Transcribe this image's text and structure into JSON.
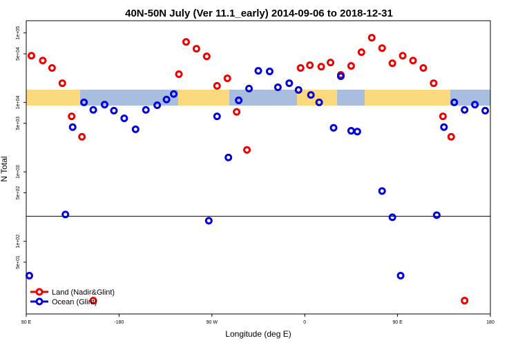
{
  "chart_data": {
    "type": "scatter",
    "title": "40N-50N July (Ver 11.1_early)   2014-09-06 to 2018-12-31",
    "x_label": "Longitude (deg E)",
    "y_label": "N Total",
    "xlim": [
      -270,
      180
    ],
    "xticks": [
      {
        "value": -270,
        "label": "90 E"
      },
      -180,
      {
        "value": -90,
        "label": "90 W"
      },
      0,
      {
        "value": 90,
        "label": "90 E"
      },
      180
    ],
    "ylim": [
      9,
      150000
    ],
    "log_y": true,
    "yticks": [
      {
        "value": 100000,
        "label": "1e+05"
      },
      {
        "value": 50000,
        "label": "5e+04"
      },
      {
        "value": 10000,
        "label": "1e+04"
      },
      {
        "value": 5000,
        "label": "5e+03"
      },
      {
        "value": 1000,
        "label": "1e+03"
      },
      {
        "value": 500,
        "label": "5e+02"
      },
      {
        "value": 100,
        "label": "1e+02"
      },
      {
        "value": 50,
        "label": "5e+01"
      }
    ],
    "reference_line": 230,
    "legend": "bottom-left",
    "series": [
      {
        "name": "Land (Nadir&Glint)",
        "color": "#ee0000",
        "x": [
          -265,
          -254,
          -245,
          -235,
          -226,
          -216,
          -205,
          -122,
          -115,
          -105,
          -95,
          -85,
          -75,
          -66,
          -56,
          -4,
          5,
          16,
          25,
          35,
          45,
          55,
          65,
          75,
          85,
          95,
          105,
          115,
          125,
          134,
          142,
          155
        ],
        "values": [
          47000,
          40000,
          31300,
          18900,
          6300,
          3200,
          14,
          25500,
          74300,
          59200,
          46000,
          17300,
          22200,
          7300,
          2070,
          31300,
          34300,
          32700,
          37500,
          24900,
          33500,
          52800,
          85300,
          60500,
          36600,
          47000,
          40000,
          31300,
          18900,
          6300,
          3200,
          14
        ]
      },
      {
        "name": "Ocean (Glint)",
        "color": "#0000dd",
        "x": [
          -267,
          -232,
          -225,
          -214,
          -205,
          -194,
          -185,
          -175,
          -164,
          -154,
          -143,
          -134,
          -127,
          -93,
          -85,
          -74,
          -64,
          -54,
          -45,
          -34,
          -26,
          -15,
          -6,
          6,
          14,
          28,
          35,
          45,
          51,
          75,
          85,
          93,
          128,
          135,
          145,
          155,
          165,
          175
        ],
        "values": [
          32,
          243,
          4400,
          10000,
          7800,
          9300,
          7600,
          5900,
          4100,
          7800,
          9100,
          11000,
          13200,
          198,
          6300,
          1610,
          10700,
          15800,
          28500,
          27900,
          16500,
          18900,
          15100,
          12800,
          10000,
          4300,
          23800,
          3900,
          3800,
          530,
          222,
          32,
          238,
          4400,
          10000,
          7800,
          9300,
          7600
        ]
      }
    ]
  }
}
